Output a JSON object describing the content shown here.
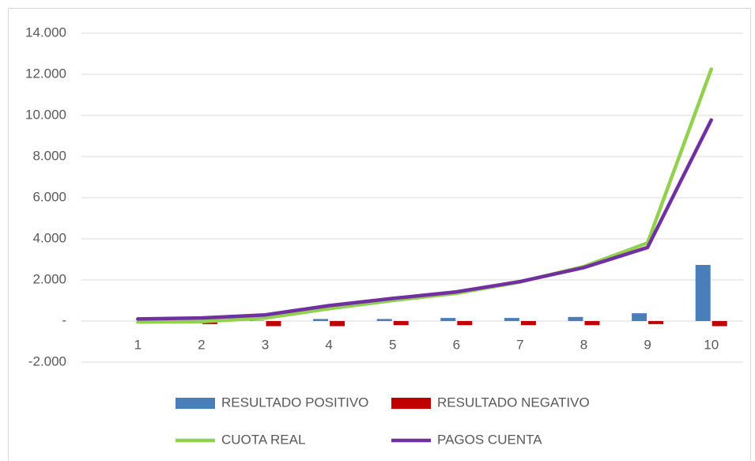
{
  "chart_data": {
    "type": "combo",
    "categories": [
      "1",
      "2",
      "3",
      "4",
      "5",
      "6",
      "7",
      "8",
      "9",
      "10"
    ],
    "series": [
      {
        "name": "RESULTADO POSITIVO",
        "type": "bar",
        "color": "#4a7ebb",
        "values": [
          0,
          0,
          20,
          100,
          100,
          150,
          150,
          200,
          380,
          2730
        ]
      },
      {
        "name": "RESULTADO NEGATIVO",
        "type": "bar",
        "color": "#c00000",
        "values": [
          -50,
          -150,
          -250,
          -250,
          -200,
          -200,
          -200,
          -200,
          -150,
          -250
        ]
      },
      {
        "name": "CUOTA REAL",
        "type": "line",
        "color": "#92d050",
        "values": [
          -50,
          -30,
          150,
          600,
          1000,
          1350,
          1900,
          2650,
          3800,
          12250
        ]
      },
      {
        "name": "PAGOS CUENTA",
        "type": "line",
        "color": "#7030a0",
        "values": [
          100,
          150,
          300,
          750,
          1100,
          1420,
          1920,
          2600,
          3580,
          9780
        ]
      }
    ],
    "ylim": [
      -2000,
      14000
    ],
    "yticks": [
      {
        "value": -2000,
        "label": "-2.000"
      },
      {
        "value": 0,
        "label": "-"
      },
      {
        "value": 2000,
        "label": "2.000"
      },
      {
        "value": 4000,
        "label": "4.000"
      },
      {
        "value": 6000,
        "label": "6.000"
      },
      {
        "value": 8000,
        "label": "8.000"
      },
      {
        "value": 10000,
        "label": "10.000"
      },
      {
        "value": 12000,
        "label": "12.000"
      },
      {
        "value": 14000,
        "label": "14.000"
      }
    ],
    "grid": true
  }
}
